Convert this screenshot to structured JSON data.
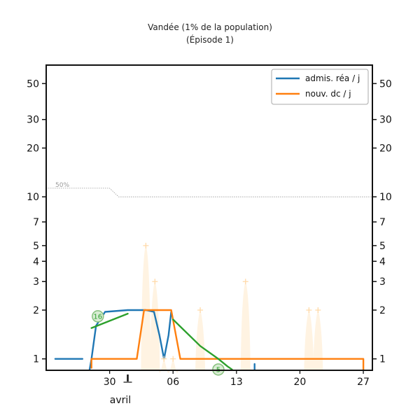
{
  "chart_data": {
    "type": "line",
    "title": "Vandée (1% de la population)",
    "subtitle": "(Épisode 1)",
    "y_scale": "log",
    "ylim": [
      0.85,
      65
    ],
    "y_ticks": [
      1,
      2,
      3,
      4,
      5,
      7,
      10,
      20,
      30,
      50
    ],
    "y_tick_labels": [
      "1",
      "2",
      "3",
      "4",
      "5",
      "7",
      "10",
      "20",
      "30",
      "50"
    ],
    "xlim": [
      "2020-03-23",
      "2020-04-28"
    ],
    "x_ticks": [
      "2020-03-30",
      "2020-04-06",
      "2020-04-13",
      "2020-04-20",
      "2020-04-27"
    ],
    "x_tick_labels": [
      "30",
      "06",
      "13",
      "20",
      "27"
    ],
    "month_marker": {
      "date": "2020-04-01",
      "label": "avril"
    },
    "legend": {
      "placement": "top-right",
      "entries": [
        "admis. réa / j",
        "nouv. dc / j"
      ]
    },
    "series": [
      {
        "name": "admis. réa / j",
        "color": "#1f77b4",
        "segments": [
          [
            [
              "2020-03-24",
              1.0
            ],
            [
              "2020-03-27",
              1.0
            ]
          ],
          [
            [
              "2020-03-27.8",
              0.86
            ],
            [
              "2020-03-28",
              1.0
            ],
            [
              "2020-03-28.5",
              1.6
            ],
            [
              "2020-03-29.5",
              1.95
            ],
            [
              "2020-04-01",
              2.0
            ],
            [
              "2020-04-03",
              2.0
            ],
            [
              "2020-04-03.9",
              1.95
            ],
            [
              "2020-04-04.5",
              1.4
            ],
            [
              "2020-04-05",
              1.0
            ],
            [
              "2020-04-05.5",
              1.4
            ],
            [
              "2020-04-05.8",
              1.95
            ]
          ],
          [
            [
              "2020-04-15",
              0.93
            ],
            [
              "2020-04-15",
              0.86
            ]
          ]
        ]
      },
      {
        "name": "nouv. dc / j",
        "color": "#ff7f0e",
        "segments": [
          [
            [
              "2020-03-28",
              0.88
            ],
            [
              "2020-03-28",
              1.0
            ],
            [
              "2020-04-02",
              1.0
            ],
            [
              "2020-04-02.8",
              2.0
            ],
            [
              "2020-04-05.8",
              2.0
            ],
            [
              "2020-04-06.8",
              1.0
            ],
            [
              "2020-04-27",
              1.0
            ],
            [
              "2020-04-27",
              0.86
            ]
          ]
        ]
      },
      {
        "name": "",
        "color": "#2ca02c",
        "segments": [
          [
            [
              "2020-03-28",
              1.55
            ],
            [
              "2020-04-01",
              1.9
            ]
          ],
          [
            [
              "2020-04-06",
              1.75
            ],
            [
              "2020-04-09",
              1.2
            ],
            [
              "2020-04-11",
              1.0
            ],
            [
              "2020-04-12",
              0.9
            ],
            [
              "2020-04-12.5",
              0.86
            ]
          ]
        ]
      }
    ],
    "daily_points": {
      "color": "#ffd9a8",
      "values": [
        [
          "2020-04-03",
          5
        ],
        [
          "2020-04-04",
          3
        ],
        [
          "2020-04-05",
          1
        ],
        [
          "2020-04-06",
          1
        ],
        [
          "2020-04-09",
          2
        ],
        [
          "2020-04-14",
          3
        ],
        [
          "2020-04-21",
          2
        ],
        [
          "2020-04-22",
          2
        ]
      ]
    },
    "reference_line": {
      "label": "50%",
      "color": "#999999",
      "values": [
        [
          "2020-03-23",
          11.3
        ],
        [
          "2020-03-30",
          11.3
        ],
        [
          "2020-03-31",
          10.0
        ],
        [
          "2020-04-28",
          10.0
        ]
      ]
    },
    "annotations": [
      {
        "label": "16",
        "date": "2020-03-28.7",
        "y": 1.83
      },
      {
        "label": "5",
        "date": "2020-04-11",
        "y": 0.86
      }
    ]
  }
}
